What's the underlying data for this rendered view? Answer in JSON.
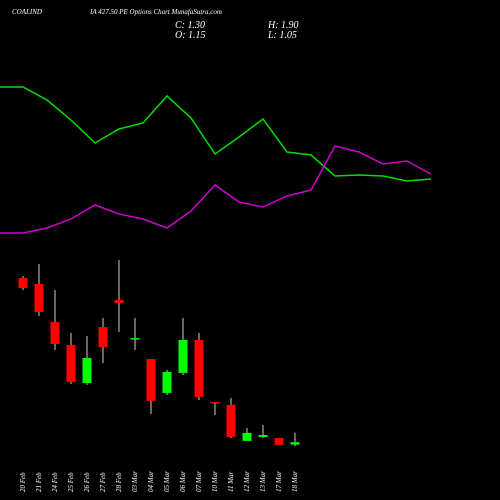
{
  "chart_data": [
    {
      "type": "line",
      "ylim": [
        0,
        250
      ],
      "series": [
        {
          "color": "#00dd00",
          "values": [
            163,
            163,
            150,
            130,
            107,
            121,
            127,
            154,
            132,
            96,
            113,
            131,
            98,
            95,
            74,
            75,
            74,
            69,
            71
          ]
        },
        {
          "color": "#cc00cc",
          "values": [
            17,
            17,
            22,
            31,
            45,
            36,
            31,
            22,
            39,
            65,
            48,
            43,
            54,
            60,
            104,
            98,
            86,
            89,
            76
          ]
        }
      ]
    },
    {
      "type": "candlestick",
      "title": "COALIND",
      "subtitle": "IA 427.50 PE Options Chart MunafaSutra.com",
      "ohlc_labels": [
        "C: 1.30",
        "H: 1.90",
        "O: 1.15",
        "L: 1.05"
      ],
      "ylim": [
        0,
        14
      ],
      "up_color": "#00ff00",
      "down_color": "#ff0000",
      "categories": [
        "20 Feb",
        "21 Feb",
        "24 Feb",
        "25 Feb",
        "26 Feb",
        "27 Feb",
        "28 Feb",
        "03 Mar",
        "04 Mar",
        "05 Mar",
        "06 Mar",
        "07 Mar",
        "10 Mar",
        "11 Mar",
        "12 Mar",
        "13 Mar",
        "17 Mar",
        "18 Mar"
      ],
      "open": [
        11.56,
        11.19,
        8.81,
        7.38,
        5.0,
        8.5,
        10.19,
        7.75,
        6.5,
        4.38,
        5.63,
        7.69,
        3.81,
        3.63,
        1.38,
        1.63,
        1.56,
        1.15
      ],
      "high": [
        11.69,
        12.44,
        10.81,
        8.13,
        7.94,
        9.06,
        12.69,
        9.06,
        6.5,
        5.81,
        9.06,
        8.13,
        3.81,
        4.06,
        2.19,
        2.38,
        1.56,
        1.9
      ],
      "low": [
        10.81,
        9.19,
        7.06,
        4.94,
        4.88,
        6.25,
        8.19,
        7.06,
        3.06,
        4.25,
        5.5,
        3.94,
        3.0,
        1.56,
        1.38,
        1.56,
        1.13,
        1.05
      ],
      "close": [
        10.94,
        9.44,
        7.44,
        5.06,
        6.56,
        7.25,
        10.0,
        7.81,
        3.88,
        5.69,
        7.69,
        4.13,
        3.75,
        1.63,
        1.88,
        1.75,
        1.13,
        1.3
      ]
    }
  ]
}
